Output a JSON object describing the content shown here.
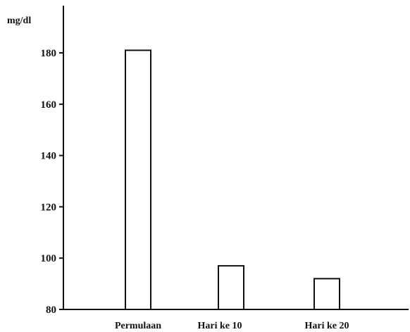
{
  "chart_data": {
    "type": "bar",
    "ylabel": "mg/dl",
    "xlabel": "",
    "title": "",
    "categories": [
      "Permulaan",
      "Hari ke 10",
      "Hari ke 20"
    ],
    "values": [
      181,
      97,
      92
    ],
    "ylim": [
      80,
      190
    ],
    "yticks": [
      "180",
      "160",
      "140",
      "120",
      "100",
      "80"
    ],
    "ytick_values": [
      180,
      160,
      140,
      120,
      100,
      80
    ],
    "grid": false,
    "legend": "none",
    "colors": {
      "bar_fill": "#ffffff",
      "bar_stroke": "#111111",
      "axis": "#111111"
    }
  }
}
